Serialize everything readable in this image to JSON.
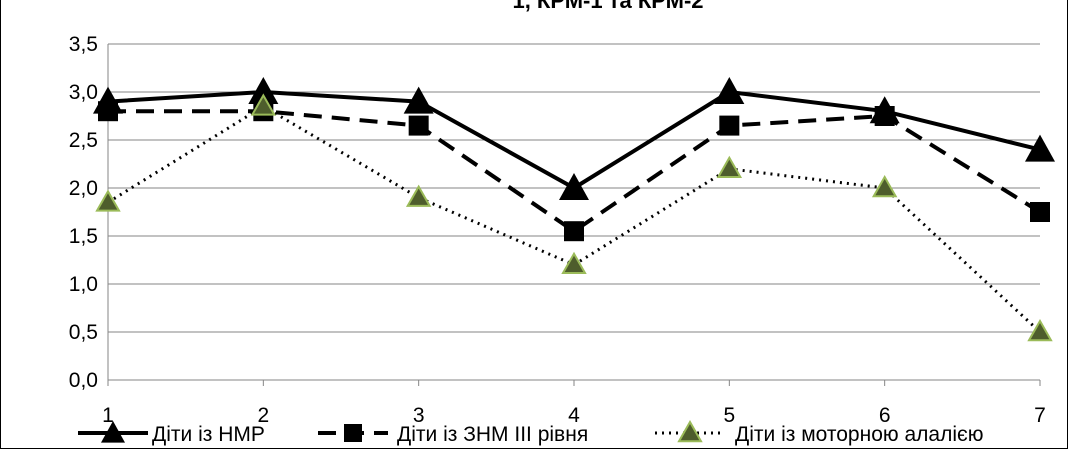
{
  "chart_data": {
    "type": "line",
    "title": "",
    "title_partial": "1, КРМ-1 та КРМ-2",
    "xlabel": "",
    "ylabel": "",
    "x": [
      "1",
      "2",
      "3",
      "4",
      "5",
      "6",
      "7"
    ],
    "ylim": [
      0,
      3.5
    ],
    "yticks": [
      "0,0",
      "0,5",
      "1,0",
      "1,5",
      "2,0",
      "2,5",
      "3,0",
      "3,5"
    ],
    "grid": "horizontal",
    "legend_position": "bottom",
    "series": [
      {
        "name": "Діти із НМР",
        "values": [
          2.9,
          3.0,
          2.9,
          2.0,
          3.0,
          2.8,
          2.4
        ],
        "color": "#000000",
        "line_style": "solid",
        "marker": "triangle"
      },
      {
        "name": "Діти із ЗНМ ІІІ рівня",
        "values": [
          2.8,
          2.8,
          2.65,
          1.55,
          2.65,
          2.75,
          1.75
        ],
        "color": "#000000",
        "line_style": "dashed",
        "marker": "square"
      },
      {
        "name": "Діти із моторною алалією",
        "values": [
          1.85,
          2.85,
          1.9,
          1.2,
          2.2,
          2.0,
          0.5
        ],
        "color": "#000000",
        "marker_fill": "#4e5d2c",
        "marker_edge": "#9bbb59",
        "line_style": "dotted",
        "marker": "triangle"
      }
    ]
  }
}
